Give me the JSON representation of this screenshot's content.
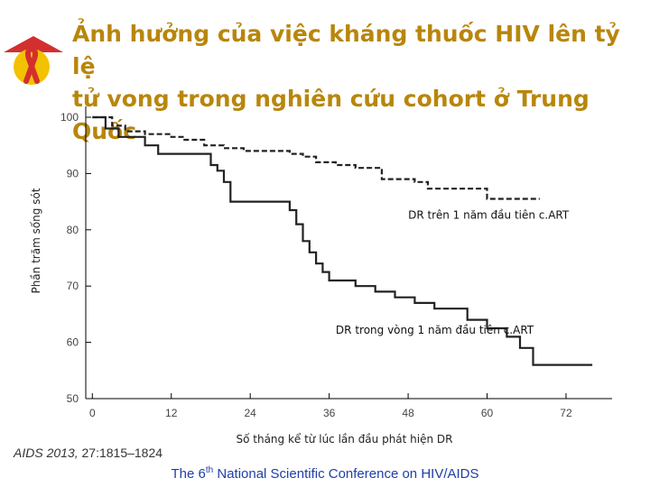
{
  "slide": {
    "title_line1": "Ảnh hưởng của việc kháng thuốc HIV lên tỷ lệ",
    "title_line2": "tử vong trong nghiên cứu cohort ở Trung Quốc",
    "citation_journal": "AIDS 2013, ",
    "citation_ref": "27:1815–1824",
    "footer_pre": "The 6",
    "footer_sup": "th",
    "footer_post": " National Scientific Conference on HIV/AIDS",
    "logo_icon": "aids-ribbon-icon",
    "colors": {
      "title": "#b8860b",
      "footer": "#1f3ea8",
      "ribbon": "#d32f2f",
      "logo_bg": "#f2c200"
    }
  },
  "chart_data": {
    "type": "line",
    "title": "",
    "xlabel": "Số tháng kể từ lúc lần đầu phát hiện DR",
    "ylabel": "Phần trăm sống sót",
    "xlim": [
      -1,
      79
    ],
    "ylim": [
      50,
      100
    ],
    "xticks": [
      0,
      12,
      24,
      36,
      48,
      60,
      72
    ],
    "yticks": [
      50,
      60,
      70,
      80,
      90,
      100
    ],
    "grid": false,
    "series": [
      {
        "name": "DR trên 1 năm đầu tiên c.ART",
        "style": "dashed",
        "points": [
          [
            0,
            100
          ],
          [
            3,
            100
          ],
          [
            3,
            98.5
          ],
          [
            5,
            98.5
          ],
          [
            5,
            97.5
          ],
          [
            8,
            97.5
          ],
          [
            8,
            97
          ],
          [
            12,
            97
          ],
          [
            12,
            96.5
          ],
          [
            14,
            96.5
          ],
          [
            14,
            96
          ],
          [
            17,
            96
          ],
          [
            17,
            95
          ],
          [
            20,
            95
          ],
          [
            20,
            94.5
          ],
          [
            23,
            94.5
          ],
          [
            23,
            94
          ],
          [
            30,
            94
          ],
          [
            30,
            93.5
          ],
          [
            32,
            93.5
          ],
          [
            32,
            93
          ],
          [
            34,
            93
          ],
          [
            34,
            92
          ],
          [
            37,
            92
          ],
          [
            37,
            91.5
          ],
          [
            40,
            91.5
          ],
          [
            40,
            91
          ],
          [
            44,
            91
          ],
          [
            44,
            89
          ],
          [
            49,
            89
          ],
          [
            49,
            88.5
          ],
          [
            51,
            88.5
          ],
          [
            51,
            87.3
          ],
          [
            60,
            87.3
          ],
          [
            60,
            85.5
          ],
          [
            68,
            85.5
          ]
        ]
      },
      {
        "name": "DR trong vòng 1 năm đầu tiên c.ART",
        "style": "solid",
        "points": [
          [
            0,
            100
          ],
          [
            2,
            100
          ],
          [
            2,
            98
          ],
          [
            4,
            98
          ],
          [
            4,
            96.5
          ],
          [
            8,
            96.5
          ],
          [
            8,
            95
          ],
          [
            10,
            95
          ],
          [
            10,
            93.5
          ],
          [
            18,
            93.5
          ],
          [
            18,
            91.5
          ],
          [
            19,
            91.5
          ],
          [
            19,
            90.5
          ],
          [
            20,
            90.5
          ],
          [
            20,
            88.5
          ],
          [
            21,
            88.5
          ],
          [
            21,
            85
          ],
          [
            30,
            85
          ],
          [
            30,
            83.5
          ],
          [
            31,
            83.5
          ],
          [
            31,
            81
          ],
          [
            32,
            81
          ],
          [
            32,
            78
          ],
          [
            33,
            78
          ],
          [
            33,
            76
          ],
          [
            34,
            76
          ],
          [
            34,
            74
          ],
          [
            35,
            74
          ],
          [
            35,
            72.5
          ],
          [
            36,
            72.5
          ],
          [
            36,
            71
          ],
          [
            40,
            71
          ],
          [
            40,
            70
          ],
          [
            43,
            70
          ],
          [
            43,
            69
          ],
          [
            46,
            69
          ],
          [
            46,
            68
          ],
          [
            49,
            68
          ],
          [
            49,
            67
          ],
          [
            52,
            67
          ],
          [
            52,
            66
          ],
          [
            57,
            66
          ],
          [
            57,
            64
          ],
          [
            60,
            64
          ],
          [
            60,
            62.5
          ],
          [
            63,
            62.5
          ],
          [
            63,
            61
          ],
          [
            65,
            61
          ],
          [
            65,
            59
          ],
          [
            67,
            59
          ],
          [
            67,
            56
          ],
          [
            76,
            56
          ]
        ]
      }
    ],
    "annotations": [
      {
        "text": "DR trên 1 năm đầu tiên c.ART",
        "x": 48,
        "y": 82
      },
      {
        "text": "DR trong vòng 1 năm đầu tiên c.ART",
        "x": 37,
        "y": 61.5
      }
    ]
  }
}
